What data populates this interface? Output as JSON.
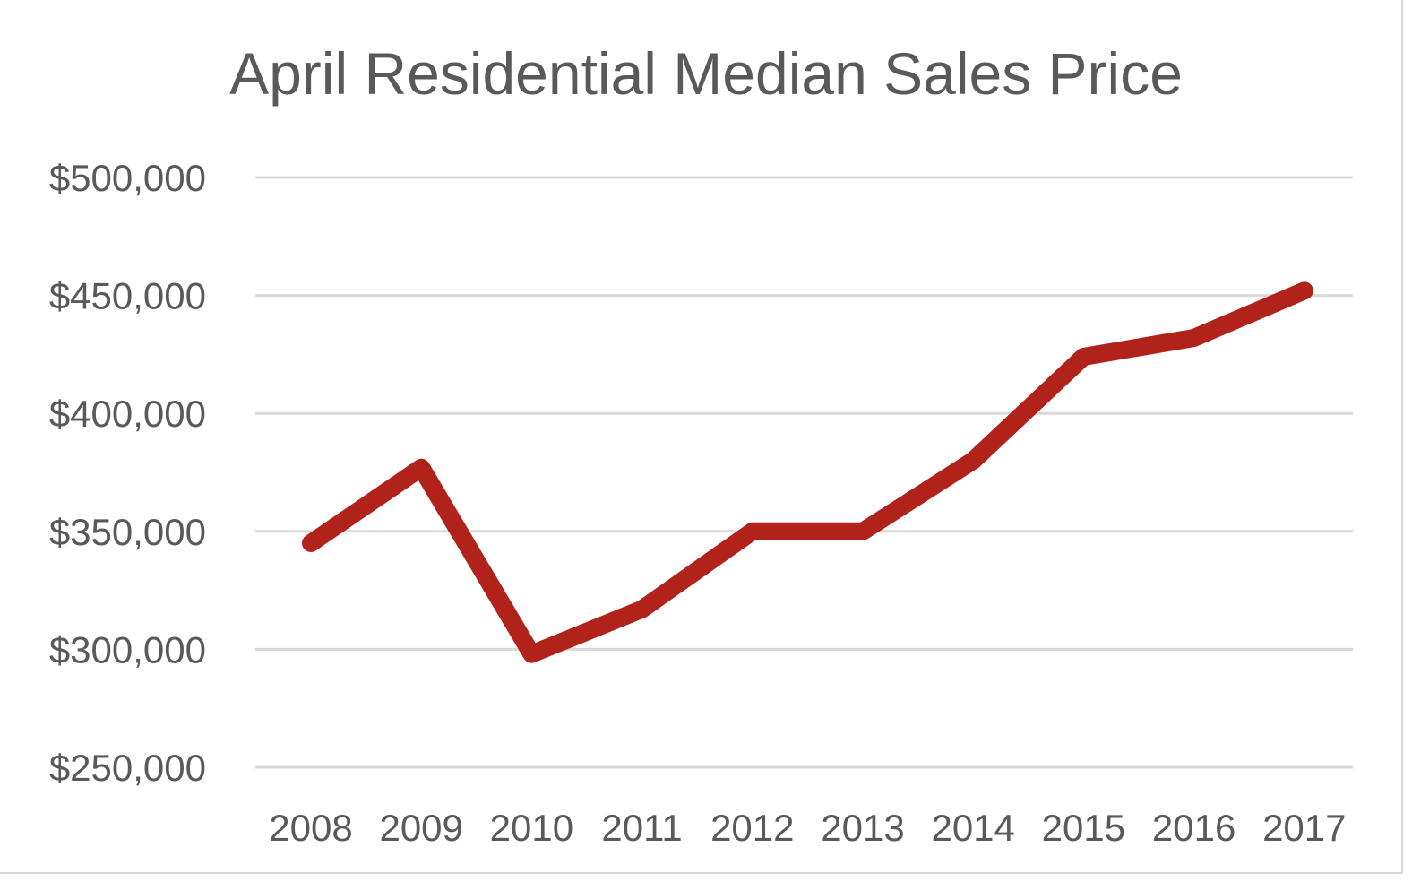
{
  "chart_data": {
    "type": "line",
    "title": "April Residential Median Sales Price",
    "xlabel": "",
    "ylabel": "",
    "categories": [
      "2008",
      "2009",
      "2010",
      "2011",
      "2012",
      "2013",
      "2014",
      "2015",
      "2016",
      "2017"
    ],
    "series": [
      {
        "values": [
          345000,
          377000,
          298000,
          317000,
          350000,
          350000,
          380000,
          424000,
          432000,
          452000
        ],
        "color": "#b1221a"
      }
    ],
    "ylim": [
      250000,
      500000
    ],
    "yticks": [
      500000,
      450000,
      400000,
      350000,
      300000,
      250000
    ],
    "ytick_labels": [
      "$500,000",
      "$450,000",
      "$400,000",
      "$350,000",
      "$300,000",
      "$250,000"
    ],
    "grid": true,
    "legend": "none"
  }
}
